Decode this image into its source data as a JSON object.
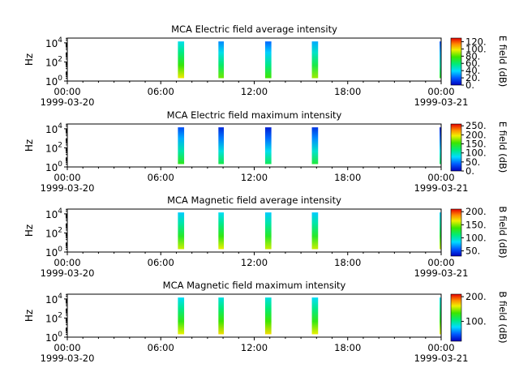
{
  "chart_data": [
    {
      "type": "heatmap",
      "title": "MCA  Electric field average intensity",
      "ylabel": "Hz",
      "y_scale": "log",
      "y_ticks": [
        {
          "base": "10",
          "exp": "0"
        },
        {
          "base": "10",
          "exp": "2"
        },
        {
          "base": "10",
          "exp": "4"
        }
      ],
      "x_ticks": [
        "00:00",
        "06:00",
        "12:00",
        "18:00",
        "00:00"
      ],
      "x_dates": [
        "1999-03-20",
        "1999-03-21"
      ],
      "xlim_hours": [
        0,
        24
      ],
      "ylim_log10": [
        0,
        4.5
      ],
      "colorbar": {
        "label": "E field (dB)",
        "ticks": [
          "0.",
          "20.",
          "40.",
          "60.",
          "80.",
          "100.",
          "120."
        ],
        "range": [
          0,
          130
        ]
      },
      "segments": [
        {
          "start_hour": 7.1,
          "end_hour": 7.5,
          "level": 70
        },
        {
          "start_hour": 9.7,
          "end_hour": 10.05,
          "level": 55
        },
        {
          "start_hour": 12.7,
          "end_hour": 13.1,
          "level": 50
        },
        {
          "start_hour": 15.7,
          "end_hour": 16.1,
          "level": 60
        },
        {
          "start_hour": 23.9,
          "end_hour": 24.0,
          "level": 45
        }
      ]
    },
    {
      "type": "heatmap",
      "title": "MCA  Electric field maximum intensity",
      "ylabel": "Hz",
      "y_scale": "log",
      "y_ticks": [
        {
          "base": "10",
          "exp": "0"
        },
        {
          "base": "10",
          "exp": "2"
        },
        {
          "base": "10",
          "exp": "4"
        }
      ],
      "x_ticks": [
        "00:00",
        "06:00",
        "12:00",
        "18:00",
        "00:00"
      ],
      "x_dates": [
        "1999-03-20",
        "1999-03-21"
      ],
      "xlim_hours": [
        0,
        24
      ],
      "ylim_log10": [
        0,
        4.5
      ],
      "colorbar": {
        "label": "E field (dB)",
        "ticks": [
          "0.",
          "50.",
          "100.",
          "150.",
          "200.",
          "250."
        ],
        "range": [
          0,
          260
        ]
      },
      "segments": [
        {
          "start_hour": 7.1,
          "end_hour": 7.5,
          "level": 90
        },
        {
          "start_hour": 9.7,
          "end_hour": 10.05,
          "level": 75
        },
        {
          "start_hour": 12.7,
          "end_hour": 13.1,
          "level": 70
        },
        {
          "start_hour": 15.7,
          "end_hour": 16.1,
          "level": 80
        },
        {
          "start_hour": 23.9,
          "end_hour": 24.0,
          "level": 70
        }
      ]
    },
    {
      "type": "heatmap",
      "title": "MCA  Magnetic field average intensity",
      "ylabel": "Hz",
      "y_scale": "log",
      "y_ticks": [
        {
          "base": "10",
          "exp": "0"
        },
        {
          "base": "10",
          "exp": "2"
        },
        {
          "base": "10",
          "exp": "4"
        }
      ],
      "x_ticks": [
        "00:00",
        "06:00",
        "12:00",
        "18:00",
        "00:00"
      ],
      "x_dates": [
        "1999-03-20",
        "1999-03-21"
      ],
      "xlim_hours": [
        0,
        24
      ],
      "ylim_log10": [
        0,
        4.5
      ],
      "colorbar": {
        "label": "B field (dB)",
        "ticks": [
          "50.",
          "100.",
          "150.",
          "200."
        ],
        "range": [
          30,
          210
        ]
      },
      "segments": [
        {
          "start_hour": 7.1,
          "end_hour": 7.5,
          "level": 120
        },
        {
          "start_hour": 9.7,
          "end_hour": 10.05,
          "level": 125
        },
        {
          "start_hour": 12.7,
          "end_hour": 13.1,
          "level": 120
        },
        {
          "start_hour": 15.7,
          "end_hour": 16.1,
          "level": 120
        },
        {
          "start_hour": 23.9,
          "end_hour": 24.0,
          "level": 120
        }
      ]
    },
    {
      "type": "heatmap",
      "title": "MCA  Magnetic field maximum intensity",
      "ylabel": "Hz",
      "y_scale": "log",
      "y_ticks": [
        {
          "base": "10",
          "exp": "0"
        },
        {
          "base": "10",
          "exp": "2"
        },
        {
          "base": "10",
          "exp": "4"
        }
      ],
      "x_ticks": [
        "00:00",
        "06:00",
        "12:00",
        "18:00",
        "00:00"
      ],
      "x_dates": [
        "1999-03-20",
        "1999-03-21"
      ],
      "xlim_hours": [
        0,
        24
      ],
      "ylim_log10": [
        0,
        4.5
      ],
      "colorbar": {
        "label": "B field (dB)",
        "ticks": [
          "100.",
          "200."
        ],
        "range": [
          20,
          210
        ]
      },
      "segments": [
        {
          "start_hour": 7.1,
          "end_hour": 7.5,
          "level": 120
        },
        {
          "start_hour": 9.7,
          "end_hour": 10.05,
          "level": 125
        },
        {
          "start_hour": 12.7,
          "end_hour": 13.1,
          "level": 125
        },
        {
          "start_hour": 15.7,
          "end_hour": 16.1,
          "level": 120
        },
        {
          "start_hour": 23.9,
          "end_hour": 24.0,
          "level": 120
        }
      ]
    }
  ]
}
